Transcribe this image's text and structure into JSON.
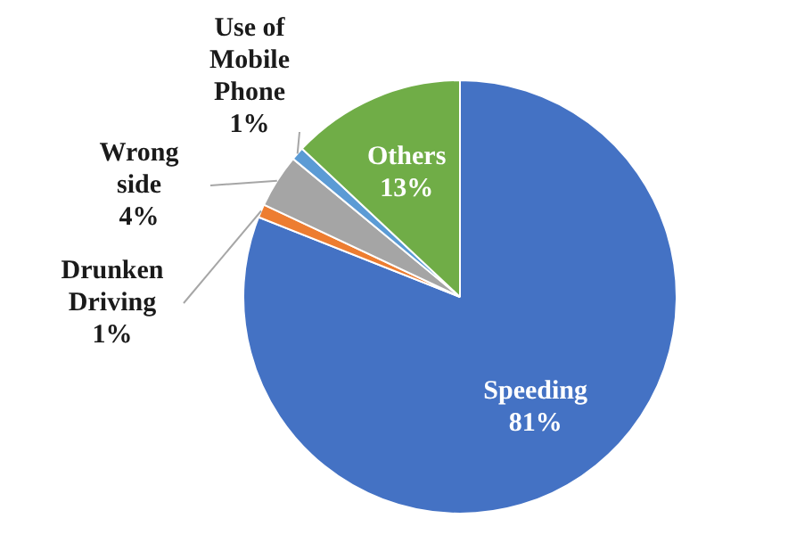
{
  "chart_data": {
    "type": "pie",
    "categories": [
      "Speeding",
      "Drunken Driving",
      "Wrong side",
      "Use of Mobile Phone",
      "Others"
    ],
    "values": [
      81,
      1,
      4,
      1,
      13
    ],
    "value_labels": [
      "81%",
      "1%",
      "4%",
      "1%",
      "13%"
    ],
    "colors": [
      "#4472c4",
      "#ed7d31",
      "#a5a5a5",
      "#5b9bd5",
      "#70ad47"
    ],
    "legend": false
  }
}
